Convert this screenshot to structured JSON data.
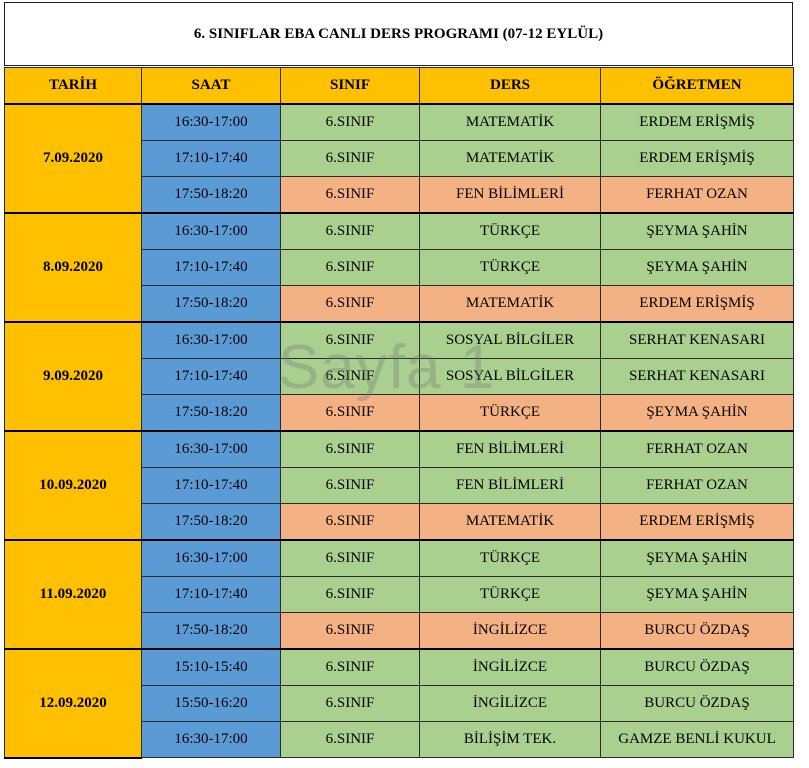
{
  "title": "6. SINIFLAR EBA CANLI DERS PROGRAMI (07-12 EYLÜL)",
  "headers": [
    "TARİH",
    "SAAT",
    "SINIF",
    "DERS",
    "ÖĞRETMEN"
  ],
  "watermark": "Sayfa 1",
  "colors": {
    "header": "#ffc000",
    "time": "#5b9bd5",
    "green": "#a9d08e",
    "orange": "#f4b183"
  },
  "days": [
    {
      "date": "7.09.2020",
      "rows": [
        {
          "time": "16:30-17:00",
          "class": "6.SINIF",
          "lesson": "MATEMATİK",
          "teacher": "ERDEM ERİŞMİŞ",
          "color": "green"
        },
        {
          "time": "17:10-17:40",
          "class": "6.SINIF",
          "lesson": "MATEMATİK",
          "teacher": "ERDEM ERİŞMİŞ",
          "color": "green"
        },
        {
          "time": "17:50-18:20",
          "class": "6.SINIF",
          "lesson": "FEN BİLİMLERİ",
          "teacher": "FERHAT OZAN",
          "color": "orange"
        }
      ]
    },
    {
      "date": "8.09.2020",
      "rows": [
        {
          "time": "16:30-17:00",
          "class": "6.SINIF",
          "lesson": "TÜRKÇE",
          "teacher": "ŞEYMA ŞAHİN",
          "color": "green"
        },
        {
          "time": "17:10-17:40",
          "class": "6.SINIF",
          "lesson": "TÜRKÇE",
          "teacher": "ŞEYMA ŞAHİN",
          "color": "green"
        },
        {
          "time": "17:50-18:20",
          "class": "6.SINIF",
          "lesson": "MATEMATİK",
          "teacher": "ERDEM ERİŞMİŞ",
          "color": "orange"
        }
      ]
    },
    {
      "date": "9.09.2020",
      "rows": [
        {
          "time": "16:30-17:00",
          "class": "6.SINIF",
          "lesson": "SOSYAL BİLGİLER",
          "teacher": "SERHAT KENASARI",
          "color": "green"
        },
        {
          "time": "17:10-17:40",
          "class": "6.SINIF",
          "lesson": "SOSYAL BİLGİLER",
          "teacher": "SERHAT KENASARI",
          "color": "green"
        },
        {
          "time": "17:50-18:20",
          "class": "6.SINIF",
          "lesson": "TÜRKÇE",
          "teacher": "ŞEYMA ŞAHİN",
          "color": "orange"
        }
      ]
    },
    {
      "date": "10.09.2020",
      "rows": [
        {
          "time": "16:30-17:00",
          "class": "6.SINIF",
          "lesson": "FEN BİLİMLERİ",
          "teacher": "FERHAT OZAN",
          "color": "green"
        },
        {
          "time": "17:10-17:40",
          "class": "6.SINIF",
          "lesson": "FEN BİLİMLERİ",
          "teacher": "FERHAT OZAN",
          "color": "green"
        },
        {
          "time": "17:50-18:20",
          "class": "6.SINIF",
          "lesson": "MATEMATİK",
          "teacher": "ERDEM ERİŞMİŞ",
          "color": "orange"
        }
      ]
    },
    {
      "date": "11.09.2020",
      "rows": [
        {
          "time": "16:30-17:00",
          "class": "6.SINIF",
          "lesson": "TÜRKÇE",
          "teacher": "ŞEYMA ŞAHİN",
          "color": "green"
        },
        {
          "time": "17:10-17:40",
          "class": "6.SINIF",
          "lesson": "TÜRKÇE",
          "teacher": "ŞEYMA ŞAHİN",
          "color": "green"
        },
        {
          "time": "17:50-18:20",
          "class": "6.SINIF",
          "lesson": "İNGİLİZCE",
          "teacher": "BURCU ÖZDAŞ",
          "color": "orange"
        }
      ]
    },
    {
      "date": "12.09.2020",
      "rows": [
        {
          "time": "15:10-15:40",
          "class": "6.SINIF",
          "lesson": "İNGİLİZCE",
          "teacher": "BURCU ÖZDAŞ",
          "color": "green"
        },
        {
          "time": "15:50-16:20",
          "class": "6.SINIF",
          "lesson": "İNGİLİZCE",
          "teacher": "BURCU ÖZDAŞ",
          "color": "green"
        },
        {
          "time": "16:30-17:00",
          "class": "6.SINIF",
          "lesson": "BİLİŞİM TEK.",
          "teacher": "GAMZE BENLİ KUKUL",
          "color": "green"
        }
      ]
    }
  ]
}
